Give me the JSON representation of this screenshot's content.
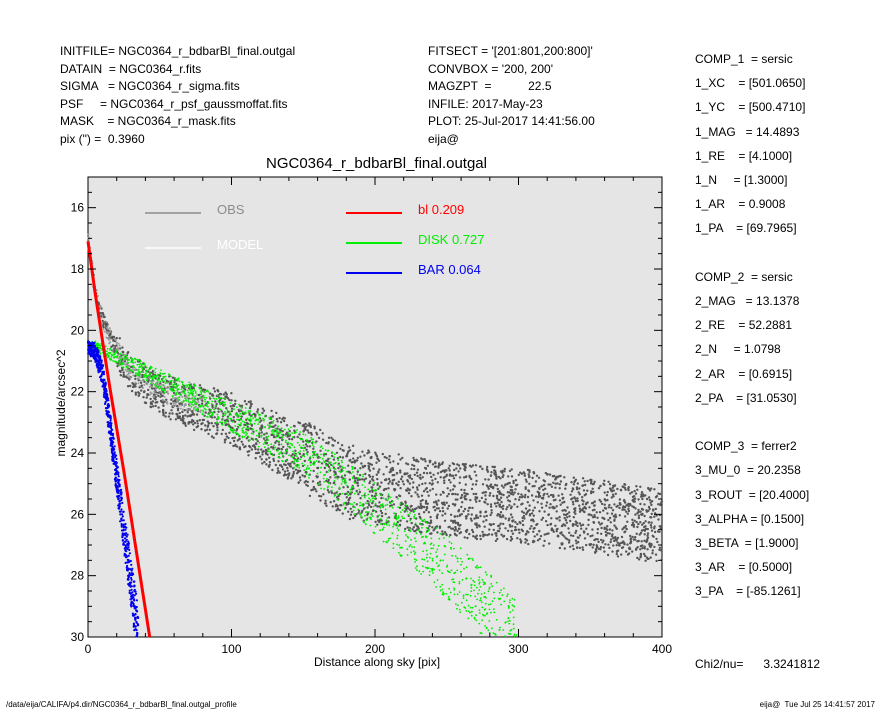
{
  "header": {
    "left": [
      "INITFILE= NGC0364_r_bdbarBl_final.outgal",
      "DATAIN  = NGC0364_r.fits",
      "SIGMA   = NGC0364_r_sigma.fits",
      "PSF     = NGC0364_r_psf_gaussmoffat.fits",
      "MASK    = NGC0364_r_mask.fits",
      "pix (\") =  0.3960"
    ],
    "middle": [
      "FITSECT = '[201:801,200:800]'",
      "CONVBOX = '200, 200'",
      "MAGZPT  =           22.5",
      "INFILE: 2017-May-23",
      "PLOT: 25-Jul-2017 14:41:56.00",
      "eija@"
    ]
  },
  "params": [
    "COMP_1  = sersic",
    "1_XC    = [501.0650]",
    "1_YC    = [500.4710]",
    "1_MAG   = 14.4893",
    "1_RE    = [4.1000]",
    "1_N     = [1.3000]",
    "1_AR    = 0.9008",
    "1_PA    = [69.7965]",
    "",
    "COMP_2  = sersic",
    "2_MAG   = 13.1378",
    "2_RE    = 52.2881",
    "2_N     = 1.0798",
    "2_AR    = [0.6915]",
    "2_PA    = [31.0530]",
    "",
    "COMP_3  = ferrer2",
    "3_MU_0  = 20.2358",
    "3_ROUT  = [20.4000]",
    "3_ALPHA = [0.1500]",
    "3_BETA  = [1.9000]",
    "3_AR    = [0.5000]",
    "3_PA    = [-85.1261]",
    "",
    "",
    "Chi2/nu=      3.3241812"
  ],
  "footer": {
    "left": "/data/eija/CALIFA/p4.dir/NGC0364_r_bdbarBl_final.outgal_profile",
    "right": "eija@  Tue Jul 25 14:41:57 2017"
  },
  "chart_data": {
    "type": "scatter",
    "title": "NGC0364_r_bdbarBl_final.outgal",
    "xlabel": "Distance along sky [pix]",
    "ylabel": "magnitude/arcsec^2",
    "xlim": [
      0,
      400
    ],
    "ylim": [
      30,
      15
    ],
    "y_inverted": true,
    "xticks": [
      0,
      100,
      200,
      300,
      400
    ],
    "yticks": [
      16,
      18,
      20,
      22,
      24,
      26,
      28,
      30
    ],
    "background": "#e5e5e5",
    "legend": [
      {
        "label": "OBS",
        "color": "#8c8c8c"
      },
      {
        "label": "MODEL",
        "color": "#ffffff"
      },
      {
        "label": "bl  0.209",
        "color": "#ff0000"
      },
      {
        "label": "DISK  0.727",
        "color": "#00ee00"
      },
      {
        "label": "BAR  0.064",
        "color": "#0000ee"
      }
    ],
    "series": [
      {
        "name": "OBS",
        "color": "#555555",
        "x": [
          0,
          5,
          10,
          15,
          20,
          25,
          30,
          40,
          50,
          60,
          80,
          100,
          120,
          150,
          180,
          200,
          250,
          300,
          350,
          400
        ],
        "y": [
          17.0,
          18.8,
          19.6,
          20.2,
          20.6,
          21.0,
          21.3,
          21.7,
          22.0,
          22.2,
          22.5,
          22.8,
          23.3,
          24.0,
          24.8,
          25.0,
          25.4,
          25.6,
          25.9,
          26.3
        ]
      },
      {
        "name": "DISK",
        "color": "#00ee00",
        "x": [
          0,
          50,
          100,
          150,
          200,
          250,
          300
        ],
        "y": [
          20.4,
          21.6,
          22.8,
          24.0,
          25.8,
          27.7,
          30.0
        ]
      },
      {
        "name": "bl",
        "color": "#ff0000",
        "x": [
          0,
          5,
          10,
          15,
          20,
          25,
          30,
          35,
          40,
          43
        ],
        "y": [
          17.1,
          18.8,
          20.3,
          21.8,
          23.2,
          24.6,
          26.1,
          27.6,
          29.1,
          30.0
        ]
      },
      {
        "name": "BAR",
        "color": "#0000ee",
        "x": [
          0,
          5,
          10,
          15,
          20,
          25,
          30,
          35
        ],
        "y": [
          20.55,
          20.7,
          21.4,
          23.0,
          24.8,
          26.5,
          28.2,
          30.0
        ]
      }
    ]
  }
}
